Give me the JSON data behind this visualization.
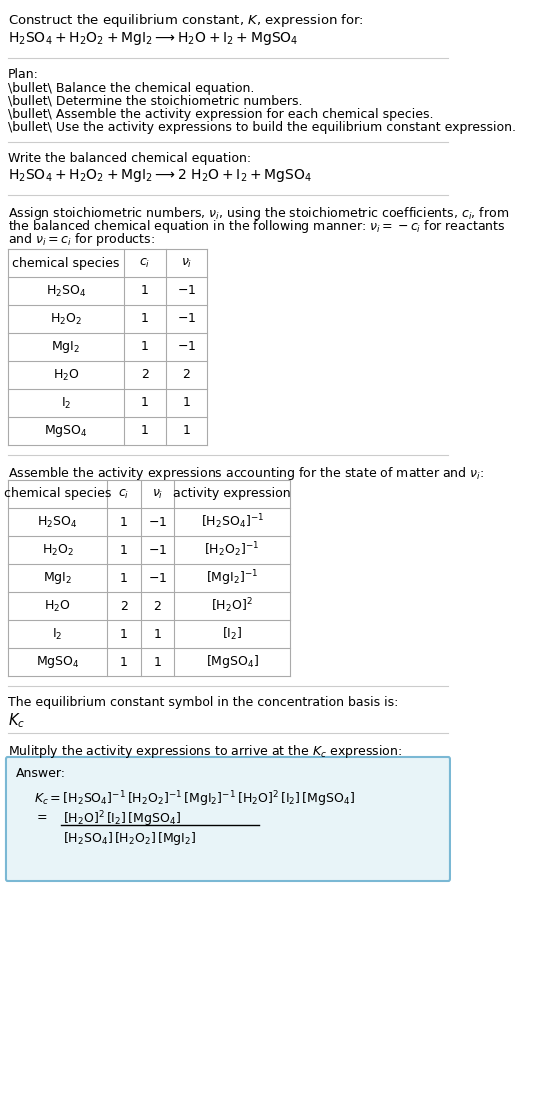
{
  "title_line1": "Construct the equilibrium constant, $K$, expression for:",
  "title_line2": "$\\mathrm{H_2SO_4 + H_2O_2 + MgI_2 \\longrightarrow H_2O + I_2 + MgSO_4}$",
  "plan_header": "Plan:",
  "plan_items": [
    "\\bullet\\ Balance the chemical equation.",
    "\\bullet\\ Determine the stoichiometric numbers.",
    "\\bullet\\ Assemble the activity expression for each chemical species.",
    "\\bullet\\ Use the activity expressions to build the equilibrium constant expression."
  ],
  "balanced_header": "Write the balanced chemical equation:",
  "balanced_eq": "$\\mathrm{H_2SO_4 + H_2O_2 + MgI_2 \\longrightarrow 2\\ H_2O + I_2 + MgSO_4}$",
  "stoich_header": "Assign stoichiometric numbers, $\\nu_i$, using the stoichiometric coefficients, $c_i$, from the balanced chemical equation in the following manner: $\\nu_i = -c_i$ for reactants and $\\nu_i = c_i$ for products:",
  "table1_cols": [
    "chemical species",
    "$c_i$",
    "$\\nu_i$"
  ],
  "table1_rows": [
    [
      "$\\mathrm{H_2SO_4}$",
      "1",
      "$-1$"
    ],
    [
      "$\\mathrm{H_2O_2}$",
      "1",
      "$-1$"
    ],
    [
      "$\\mathrm{MgI_2}$",
      "1",
      "$-1$"
    ],
    [
      "$\\mathrm{H_2O}$",
      "2",
      "2"
    ],
    [
      "$\\mathrm{I_2}$",
      "1",
      "1"
    ],
    [
      "$\\mathrm{MgSO_4}$",
      "1",
      "1"
    ]
  ],
  "activity_header": "Assemble the activity expressions accounting for the state of matter and $\\nu_i$:",
  "table2_cols": [
    "chemical species",
    "$c_i$",
    "$\\nu_i$",
    "activity expression"
  ],
  "table2_rows": [
    [
      "$\\mathrm{H_2SO_4}$",
      "1",
      "$-1$",
      "$[\\mathrm{H_2SO_4}]^{-1}$"
    ],
    [
      "$\\mathrm{H_2O_2}$",
      "1",
      "$-1$",
      "$[\\mathrm{H_2O_2}]^{-1}$"
    ],
    [
      "$\\mathrm{MgI_2}$",
      "1",
      "$-1$",
      "$[\\mathrm{MgI_2}]^{-1}$"
    ],
    [
      "$\\mathrm{H_2O}$",
      "2",
      "2",
      "$[\\mathrm{H_2O}]^2$"
    ],
    [
      "$\\mathrm{I_2}$",
      "1",
      "1",
      "$[\\mathrm{I_2}]$"
    ],
    [
      "$\\mathrm{MgSO_4}$",
      "1",
      "1",
      "$[\\mathrm{MgSO_4}]$"
    ]
  ],
  "Kc_header": "The equilibrium constant symbol in the concentration basis is:",
  "Kc_symbol": "$K_c$",
  "multiply_header": "Mulitply the activity expressions to arrive at the $K_c$ expression:",
  "answer_label": "Answer:",
  "answer_line1": "$K_c = [\\mathrm{H_2SO_4}]^{-1}\\,[\\mathrm{H_2O_2}]^{-1}\\,[\\mathrm{MgI_2}]^{-1}\\,[\\mathrm{H_2O}]^2\\,[\\mathrm{I_2}]\\,[\\mathrm{MgSO_4}]$",
  "answer_eq_label": "$=$",
  "answer_numerator": "$[\\mathrm{H_2O}]^2\\,[\\mathrm{I_2}]\\,[\\mathrm{MgSO_4}]$",
  "answer_denominator": "$[\\mathrm{H_2SO_4}]\\,[\\mathrm{H_2O_2}]\\,[\\mathrm{MgI_2}]$",
  "bg_color": "#ffffff",
  "text_color": "#000000",
  "table_border_color": "#aaaaaa",
  "answer_box_color": "#e8f4f8",
  "answer_box_border": "#7ab8d4",
  "separator_color": "#cccccc",
  "font_size": 9,
  "title_font_size": 9.5
}
